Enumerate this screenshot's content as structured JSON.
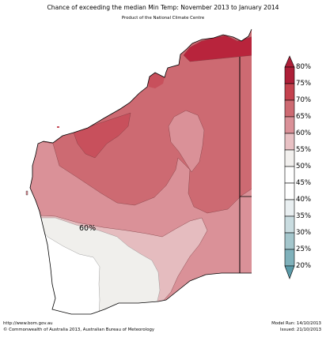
{
  "header": {
    "title": "Chance of exceeding the median Min Temp: November 2013 to January 2014",
    "subtitle": "Product of the National Climate Centre"
  },
  "map": {
    "region": "Western Australia",
    "contour_labels": [
      "60%"
    ],
    "region_classes": [
      {
        "class": "75-80%",
        "color": "#b8243c"
      },
      {
        "class": "70-75%",
        "color": "#c8505c"
      },
      {
        "class": "65-70%",
        "color": "#cd6a72"
      },
      {
        "class": "60-65%",
        "color": "#da9198"
      },
      {
        "class": "55-60%",
        "color": "#e5bcbf"
      },
      {
        "class": "50-55%",
        "color": "#f0efec"
      },
      {
        "class": "45-50%",
        "color": "#ffffff"
      }
    ]
  },
  "legend": {
    "items": [
      {
        "label": "80%",
        "color": "#ad1f38"
      },
      {
        "label": "75%",
        "color": "#c4424e"
      },
      {
        "label": "70%",
        "color": "#cd6a72"
      },
      {
        "label": "65%",
        "color": "#da9198"
      },
      {
        "label": "60%",
        "color": "#e8c1c4"
      },
      {
        "label": "55%",
        "color": "#f2f0ee"
      },
      {
        "label": "50%",
        "color": "#ffffff"
      },
      {
        "label": "45%",
        "color": "#ffffff"
      },
      {
        "label": "40%",
        "color": "#e9eff1"
      },
      {
        "label": "35%",
        "color": "#c9dce0"
      },
      {
        "label": "30%",
        "color": "#a4c6cc"
      },
      {
        "label": "25%",
        "color": "#7fb1bb"
      },
      {
        "label": "20%",
        "color": "#5a9aa8"
      }
    ]
  },
  "footer": {
    "url": "http://www.bom.gov.au",
    "copyright": "©  Commonwealth of Australia 2013, Australian Bureau of Meteorology",
    "model_run": "Model Run: 14/10/2013",
    "issued": "Issued: 21/10/2013"
  }
}
